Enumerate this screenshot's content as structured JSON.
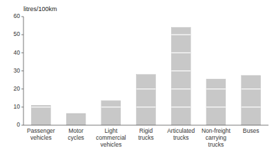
{
  "chart_data": {
    "type": "bar",
    "ylabel": "litres/100km",
    "categories": [
      "Passenger\nvehicles",
      "Motor\ncycles",
      "Light\ncommercial\nvehicles",
      "Rigid\ntrucks",
      "Articulated\ntrucks",
      "Non-freight\ncarrying\ntrucks",
      "Buses"
    ],
    "values": [
      11.0,
      6.5,
      13.5,
      28.0,
      54.0,
      25.5,
      27.5
    ],
    "color": "#c8c8c8",
    "ylim": [
      0,
      60
    ],
    "yticks": [
      0,
      10,
      20,
      30,
      40,
      50,
      60
    ]
  }
}
